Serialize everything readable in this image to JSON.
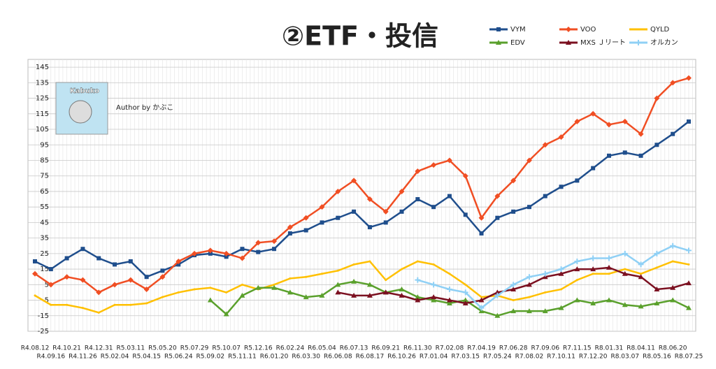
{
  "chart_data": {
    "type": "line",
    "title": "②ETF・投信",
    "annotations": [
      "Kabuko",
      "Author by かぶこ"
    ],
    "categories": [
      "R4.08.12",
      "R4.09.16",
      "R4.10.21",
      "R4.11.26",
      "R4.12.31",
      "R5.02.04",
      "R5.03.11",
      "R5.04.15",
      "R5.05.20",
      "R5.06.24",
      "R5.07.29",
      "R5.09.02",
      "R5.10.07",
      "R5.11.11",
      "R5.12.16",
      "R6.01.20",
      "R6.02.24",
      "R6.03.30",
      "R6.05.04",
      "R6.06.08",
      "R6.07.13",
      "R6.08.17",
      "R6.09.21",
      "R6.10.26",
      "R6.11.30",
      "R7.01.04",
      "R7.02.08",
      "R7.03.15",
      "R7.04.19",
      "R7.05.24",
      "R7.06.28",
      "R7.08.02",
      "R7.09.06",
      "R7.10.11",
      "R7.11.15",
      "R7.12.20",
      "R8.01.31",
      "R8.03.07",
      "R8.04.11",
      "R8.05.16",
      "R8.06.20",
      "R8.07.25"
    ],
    "series": [
      {
        "name": "VYM",
        "color": "#1f4e8c",
        "marker": "square",
        "values": [
          20,
          15,
          22,
          28,
          22,
          18,
          20,
          10,
          14,
          18,
          24,
          25,
          23,
          28,
          26,
          28,
          38,
          40,
          45,
          48,
          52,
          42,
          45,
          52,
          60,
          55,
          62,
          50,
          38,
          48,
          52,
          55,
          62,
          68,
          72,
          80,
          88,
          90,
          88,
          95,
          102,
          110
        ]
      },
      {
        "name": "VOO",
        "color": "#f04e23",
        "marker": "diamond",
        "values": [
          12,
          5,
          10,
          8,
          0,
          5,
          8,
          2,
          10,
          20,
          25,
          27,
          25,
          22,
          32,
          33,
          42,
          48,
          55,
          65,
          72,
          60,
          52,
          65,
          78,
          82,
          85,
          75,
          48,
          62,
          72,
          85,
          95,
          100,
          110,
          115,
          108,
          110,
          102,
          125,
          135,
          138
        ]
      },
      {
        "name": "QYLD",
        "color": "#ffc000",
        "marker": "none",
        "values": [
          -2,
          -8,
          -8,
          -10,
          -13,
          -8,
          -8,
          -7,
          -3,
          0,
          2,
          3,
          0,
          5,
          2,
          5,
          9,
          10,
          12,
          14,
          18,
          20,
          8,
          15,
          20,
          18,
          12,
          5,
          -3,
          -2,
          -5,
          -3,
          0,
          2,
          8,
          12,
          12,
          15,
          12,
          16,
          20,
          18
        ]
      },
      {
        "name": "EDV",
        "color": "#5aa02c",
        "marker": "triangle",
        "values": [
          null,
          null,
          null,
          null,
          null,
          null,
          null,
          null,
          null,
          null,
          null,
          -5,
          -14,
          -2,
          3,
          3,
          0,
          -3,
          -2,
          5,
          7,
          5,
          0,
          2,
          -3,
          -5,
          -7,
          -5,
          -12,
          -15,
          -12,
          -12,
          -12,
          -10,
          -5,
          -7,
          -5,
          -8,
          -9,
          -7,
          -5,
          -10
        ]
      },
      {
        "name": "MXS Ｊリート",
        "color": "#7b1020",
        "marker": "triangle",
        "values": [
          null,
          null,
          null,
          null,
          null,
          null,
          null,
          null,
          null,
          null,
          null,
          null,
          null,
          null,
          null,
          null,
          null,
          null,
          null,
          0,
          -2,
          -2,
          0,
          -2,
          -5,
          -3,
          -5,
          -7,
          -5,
          0,
          2,
          5,
          10,
          12,
          15,
          15,
          16,
          12,
          10,
          2,
          3,
          6
        ]
      },
      {
        "name": "オルカン",
        "color": "#8fd0f5",
        "marker": "star",
        "values": [
          null,
          null,
          null,
          null,
          null,
          null,
          null,
          null,
          null,
          null,
          null,
          null,
          null,
          null,
          null,
          null,
          null,
          null,
          null,
          null,
          null,
          null,
          null,
          null,
          8,
          5,
          2,
          0,
          -10,
          -2,
          5,
          10,
          12,
          15,
          20,
          22,
          22,
          25,
          18,
          25,
          30,
          27
        ]
      }
    ],
    "ylim": [
      -25,
      150
    ],
    "yticks": [
      -25,
      -15,
      -5,
      5,
      15,
      25,
      35,
      45,
      55,
      65,
      75,
      85,
      95,
      105,
      115,
      125,
      135,
      145
    ],
    "grid": true
  }
}
